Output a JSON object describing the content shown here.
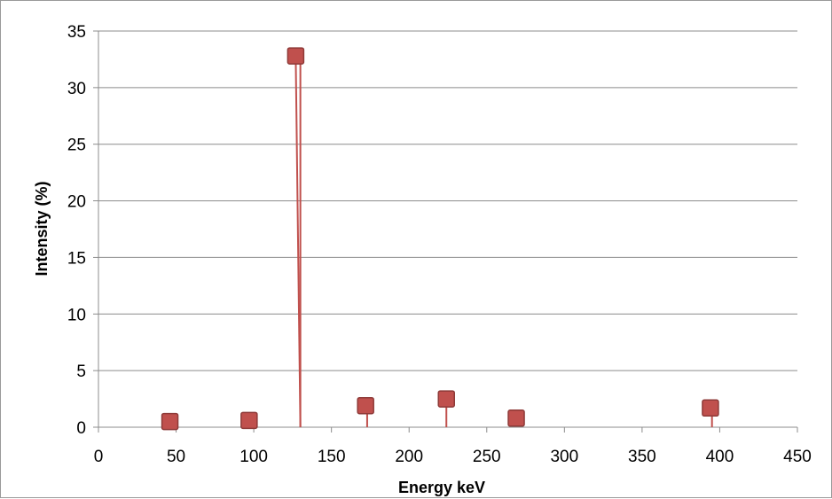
{
  "chart_data": {
    "type": "scatter",
    "title": "",
    "xlabel": "Energy keV",
    "ylabel": "Intensity (%)",
    "xlim": [
      0,
      450
    ],
    "ylim": [
      0,
      35
    ],
    "x_ticks": [
      0,
      50,
      100,
      150,
      200,
      250,
      300,
      350,
      400,
      450
    ],
    "y_ticks": [
      0,
      5,
      10,
      15,
      20,
      25,
      30,
      35
    ],
    "grid": "horizontal",
    "legend": "none",
    "marker_color": "#c0504d",
    "series": [
      {
        "x": [
          46,
          97,
          127,
          172,
          224,
          269,
          394
        ],
        "y": [
          0.5,
          0.6,
          32.8,
          1.9,
          2.5,
          0.8,
          1.7
        ],
        "stems": [
          {
            "x": 130,
            "from": 0,
            "to": 32.8
          },
          {
            "x": 173,
            "from": 0,
            "to": 1.9
          },
          {
            "x": 224,
            "from": 0,
            "to": 2.5
          },
          {
            "x": 395,
            "from": 0,
            "to": 1.7
          }
        ]
      }
    ]
  }
}
